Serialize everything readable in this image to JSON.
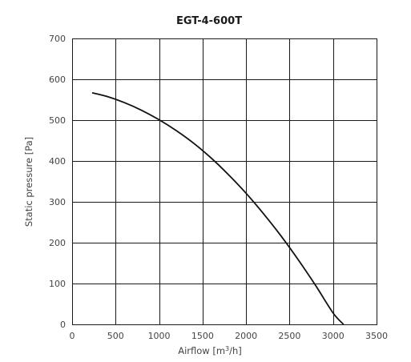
{
  "chart_data": {
    "type": "line",
    "title": "EGT-4-600T",
    "xlabel": "Airflow [m",
    "xlabel_sup": "3",
    "xlabel_end": "/h]",
    "ylabel": "Static pressure [Pa]",
    "xlim": [
      0,
      3500
    ],
    "ylim": [
      0,
      700
    ],
    "xticks": [
      0,
      500,
      1000,
      1500,
      2000,
      2500,
      3000,
      3500
    ],
    "yticks": [
      0,
      100,
      200,
      300,
      400,
      500,
      600,
      700
    ],
    "grid": true,
    "series": [
      {
        "color": "#111111",
        "x": [
          230,
          400,
          600,
          800,
          1000,
          1200,
          1400,
          1600,
          1800,
          2000,
          2200,
          2400,
          2600,
          2800,
          3000,
          3120
        ],
        "y": [
          567,
          558,
          543,
          524,
          501,
          474,
          443,
          407,
          366,
          321,
          271,
          217,
          158,
          95,
          28,
          0
        ]
      }
    ]
  }
}
